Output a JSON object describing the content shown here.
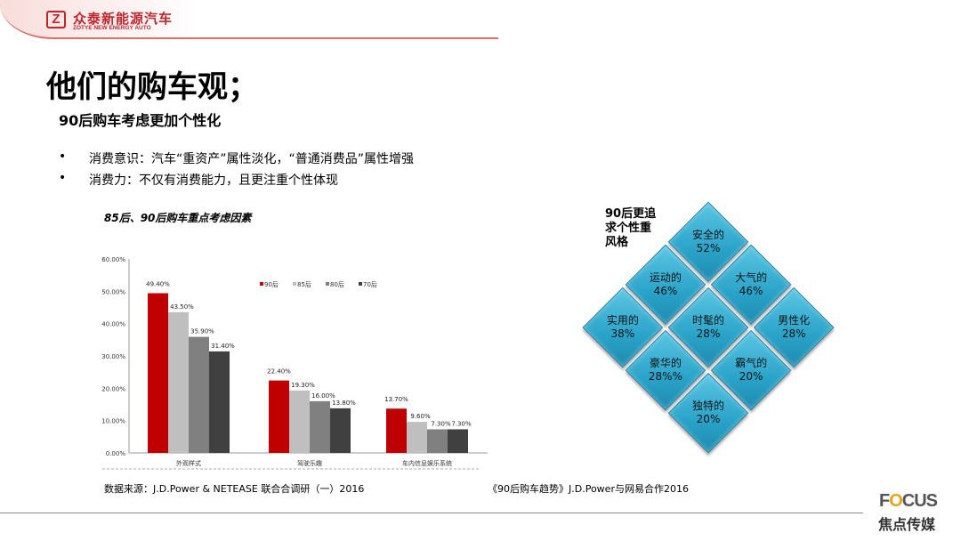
{
  "header": {
    "logo_letter": "Z",
    "logo_cn": "众泰新能源汽车",
    "logo_en": "ZOTYE NEW ENERGY AUTO"
  },
  "title": "他们的购车观；",
  "subtitle": "90后购车考虑更加个性化",
  "bullets": [
    {
      "marker": "•",
      "text": "消费意识：汽车“重资产”属性淡化，“普通消费品”属性增强"
    },
    {
      "marker": "•",
      "text": "消费力：不仅有消费能力，且更注重个性体现"
    }
  ],
  "chart_data": {
    "type": "bar",
    "title": "85后、90后购车重点考虑因素",
    "categories": [
      "外观样式",
      "驾驶乐趣",
      "车内信息娱乐系统"
    ],
    "series": [
      {
        "name": "90后",
        "color": "#c00000",
        "values": [
          49.4,
          22.4,
          13.7
        ],
        "labels": [
          "49.40%",
          "22.40%",
          "13.70%"
        ]
      },
      {
        "name": "85后",
        "color": "#bfbfbf",
        "values": [
          43.5,
          19.3,
          9.6
        ],
        "labels": [
          "43.50%",
          "19.30%",
          "9.60%"
        ]
      },
      {
        "name": "80后",
        "color": "#808080",
        "values": [
          35.9,
          16.0,
          7.3
        ],
        "labels": [
          "35.90%",
          "16.00%",
          "7.30%"
        ]
      },
      {
        "name": "70后",
        "color": "#404040",
        "values": [
          31.4,
          13.8,
          7.3
        ],
        "labels": [
          "31.40%",
          "13.80%",
          "7.30%"
        ]
      }
    ],
    "ylim": [
      0,
      60
    ],
    "yticks": [
      "0.00%",
      "10.00%",
      "20.00%",
      "30.00%",
      "40.00%",
      "50.00%",
      "60.00%"
    ],
    "legend": "top-center",
    "grid": false
  },
  "source_left": "数据来源：J.D.Power & NETEASE 联合合调研（一）2016",
  "source_right": "《90后购车趋势》J.D.Power与网易合作2016",
  "diamond": {
    "caption": "90后更追求个性重风格",
    "color": "#2aa3c9",
    "tiles": [
      {
        "label": "安全的",
        "value": "52%"
      },
      {
        "label": "大气的",
        "value": "46%"
      },
      {
        "label": "男性化",
        "value": "28%"
      },
      {
        "label": "运动的",
        "value": "46%"
      },
      {
        "label": "时髦的",
        "value": "28%"
      },
      {
        "label": "霸气的",
        "value": "20%"
      },
      {
        "label": "实用的",
        "value": "38%"
      },
      {
        "label": "豪华的",
        "value": "28%%"
      },
      {
        "label": "独特的",
        "value": "20%"
      }
    ]
  },
  "footer": {
    "brand_prefix": "F",
    "brand_o": "O",
    "brand_rest": "CUS",
    "brand_cn": "焦点传媒"
  }
}
